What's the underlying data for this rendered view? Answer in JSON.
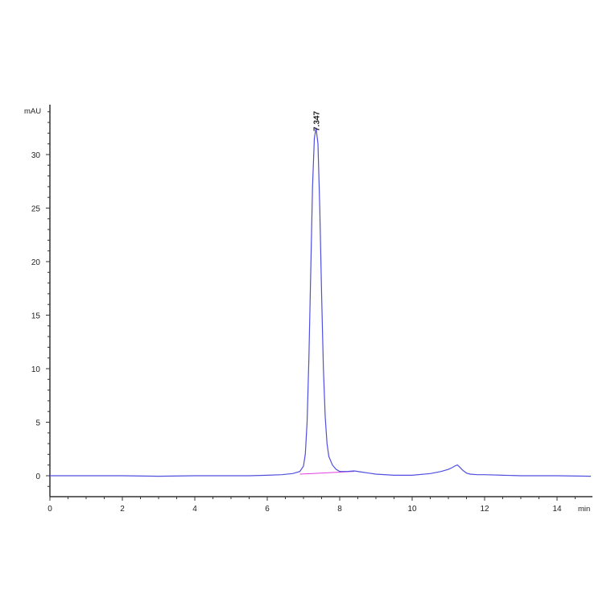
{
  "chart_data": {
    "type": "line",
    "title": "",
    "xlabel": "min",
    "ylabel": "mAU",
    "xlim": [
      0,
      15
    ],
    "ylim": [
      -2,
      34.5
    ],
    "x_ticks": [
      0,
      2,
      4,
      6,
      8,
      10,
      12,
      14
    ],
    "y_ticks": [
      0,
      5,
      10,
      15,
      20,
      25,
      30
    ],
    "grid": false,
    "legend": "none",
    "colors": {
      "signal": "#4f4fe0",
      "baseline": "#e040e0",
      "axis": "#333333"
    },
    "series": [
      {
        "x": [
          0,
          1,
          2,
          3,
          4,
          5,
          5.5,
          6,
          6.4,
          6.7,
          6.9,
          7.0,
          7.05,
          7.1,
          7.15,
          7.2,
          7.25,
          7.3,
          7.347,
          7.4,
          7.45,
          7.5,
          7.55,
          7.6,
          7.65,
          7.7,
          7.8,
          7.9,
          8.0,
          8.2,
          8.4,
          8.6,
          8.8,
          9.0,
          9.5,
          10.0,
          10.5,
          10.8,
          11.0,
          11.1,
          11.2,
          11.25,
          11.3,
          11.4,
          11.5,
          11.6,
          11.8,
          12.0,
          12.5,
          13.0,
          14.0,
          15.0
        ],
        "y": [
          0.0,
          0.0,
          0.0,
          -0.05,
          0.0,
          0.0,
          0.0,
          0.05,
          0.1,
          0.2,
          0.4,
          0.9,
          2.0,
          5.0,
          11.0,
          19.0,
          27.0,
          31.5,
          32.5,
          31.0,
          25.0,
          17.0,
          10.0,
          5.5,
          3.0,
          1.8,
          1.0,
          0.6,
          0.4,
          0.4,
          0.45,
          0.35,
          0.25,
          0.15,
          0.05,
          0.05,
          0.2,
          0.4,
          0.6,
          0.75,
          0.95,
          1.0,
          0.85,
          0.5,
          0.25,
          0.15,
          0.1,
          0.1,
          0.05,
          0.0,
          0.0,
          -0.05
        ]
      }
    ],
    "baseline": {
      "x": [
        6.9,
        8.4
      ],
      "y": [
        0.15,
        0.4
      ]
    },
    "annotations": [
      {
        "x": 7.347,
        "text": "7.347"
      }
    ]
  }
}
